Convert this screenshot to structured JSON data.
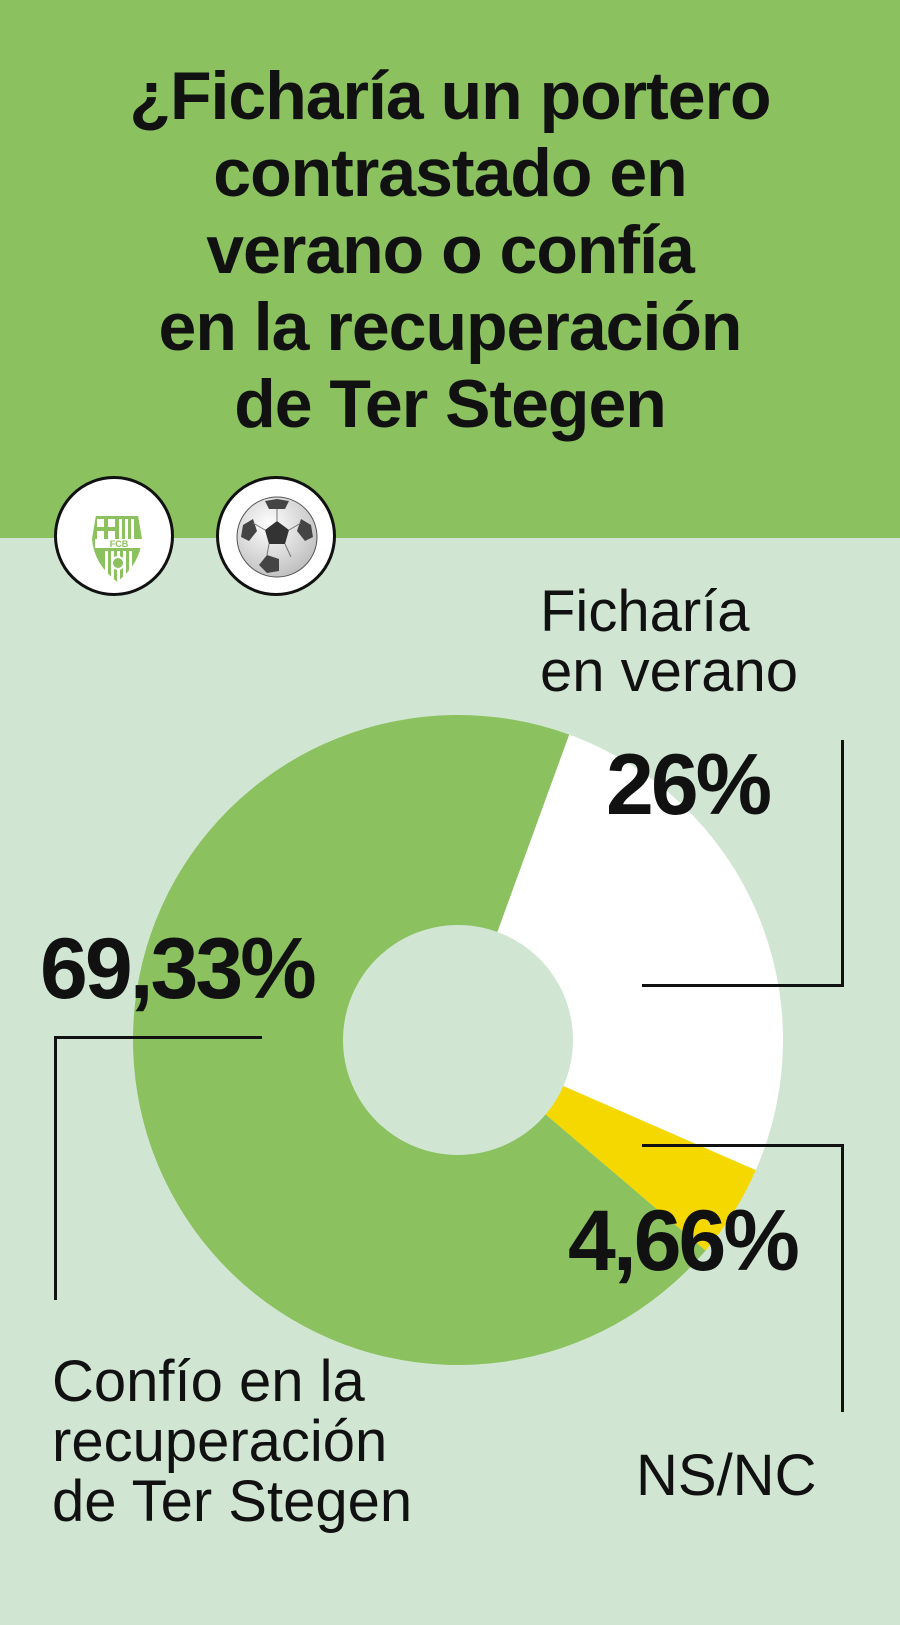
{
  "header": {
    "title_lines": [
      "¿Ficharía un portero",
      "contrastado en",
      "verano o confía",
      "en la recuperación",
      "de Ter Stegen"
    ],
    "crest_text": "FCB",
    "crest_icon": "fc-barcelona-crest-icon",
    "ball_icon": "soccer-ball-icon"
  },
  "colors": {
    "header_bg": "#8bc15f",
    "page_bg": "#d0e6d2",
    "confio": "#8bc15f",
    "ficharia": "#ffffff",
    "nsnc": "#f5d800"
  },
  "chart_data": {
    "type": "pie",
    "donut": true,
    "categories": [
      "Ficharía en verano",
      "NS/NC",
      "Confío en la recuperación de Ter Stegen"
    ],
    "values": [
      26,
      4.66,
      69.33
    ],
    "value_labels": [
      "26%",
      "4,66%",
      "69,33%"
    ],
    "colors": [
      "#ffffff",
      "#f5d800",
      "#8bc15f"
    ]
  },
  "labels": {
    "ficharia_lines": [
      "Ficharía",
      "en verano"
    ],
    "ficharia_pct": "26%",
    "nsnc": "NS/NC",
    "nsnc_pct": "4,66%",
    "confio_lines": [
      "Confío en la",
      "recuperación",
      "de Ter Stegen"
    ],
    "confio_pct": "69,33%"
  }
}
